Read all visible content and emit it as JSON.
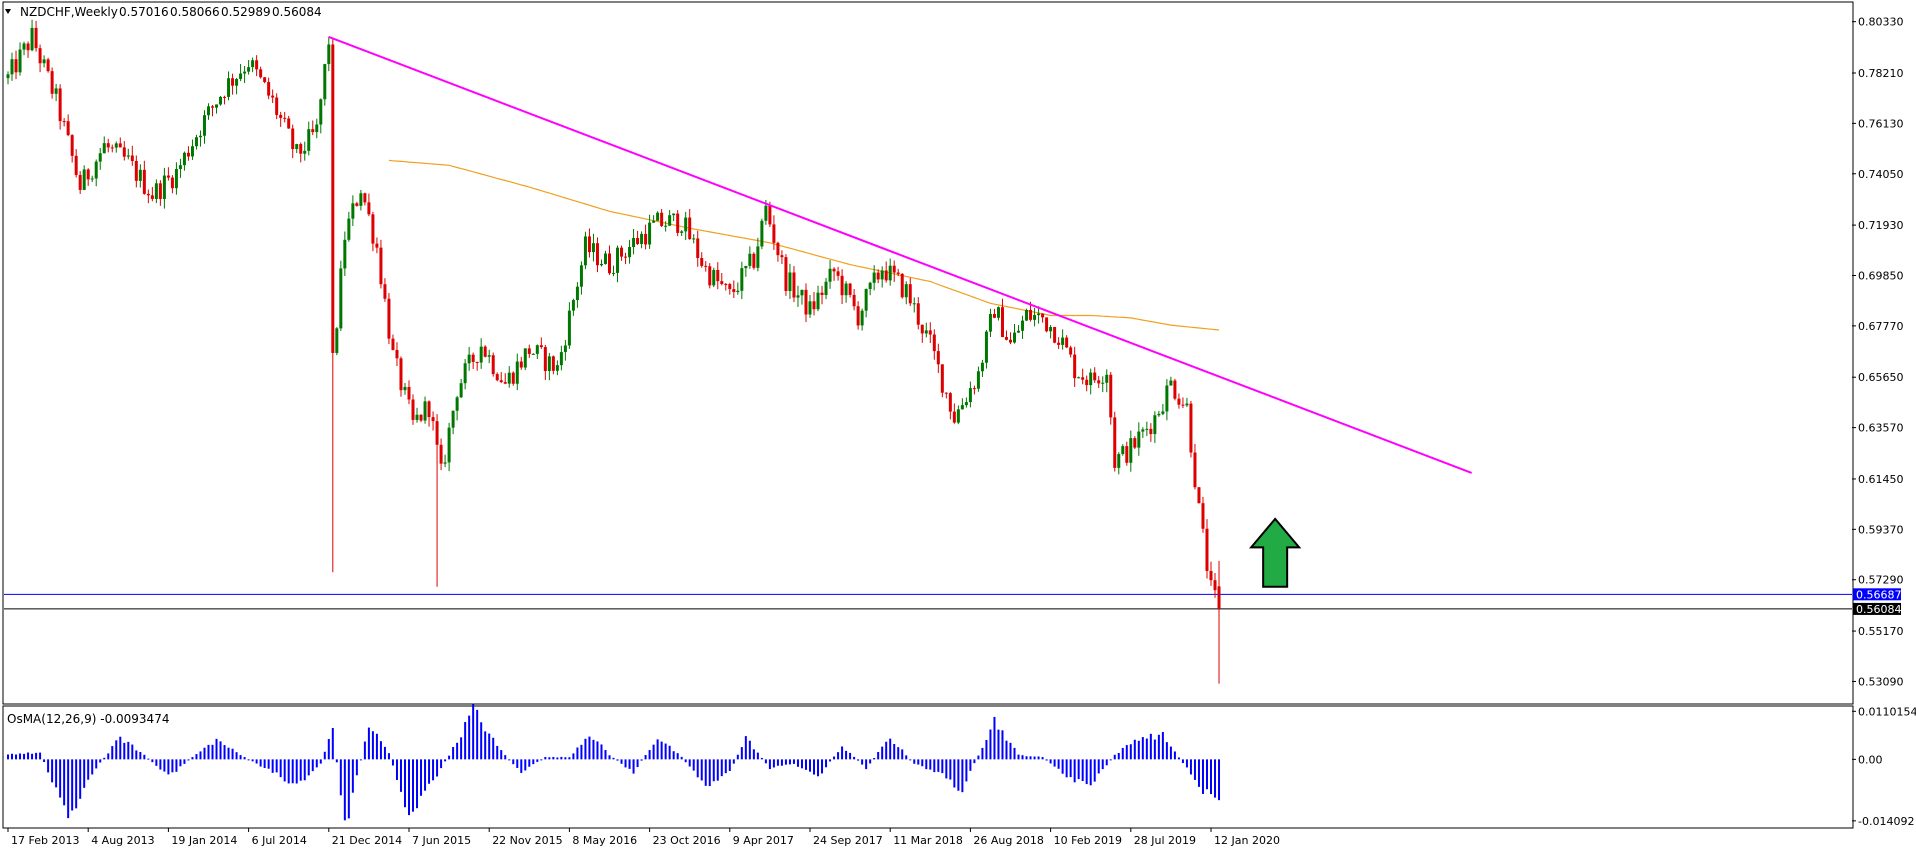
{
  "chart_data": [
    {
      "type": "candlestick",
      "title": "NZDCHF,Weekly",
      "ohlc_header": {
        "open": "0.57016",
        "high": "0.58066",
        "low": "0.52989",
        "close": "0.56084"
      },
      "timeframe": "Weekly",
      "ylim": [
        0.522,
        0.811
      ],
      "y_ticks": [
        "0.80330",
        "0.78210",
        "0.76130",
        "0.74050",
        "0.71930",
        "0.69850",
        "0.67770",
        "0.65650",
        "0.63570",
        "0.61450",
        "0.59370",
        "0.57290",
        "0.55170",
        "0.53090"
      ],
      "x_tick_labels": [
        "17 Feb 2013",
        "4 Aug 2013",
        "19 Jan 2014",
        "6 Jul 2014",
        "21 Dec 2014",
        "7 Jun 2015",
        "22 Nov 2015",
        "8 May 2016",
        "23 Oct 2016",
        "9 Apr 2017",
        "24 Sep 2017",
        "11 Mar 2018",
        "26 Aug 2018",
        "10 Feb 2019",
        "28 Jul 2019",
        "12 Jan 2020"
      ],
      "price_path": [
        {
          "bar": 0,
          "price": 0.78
        },
        {
          "bar": 6,
          "price": 0.797
        },
        {
          "bar": 12,
          "price": 0.771
        },
        {
          "bar": 18,
          "price": 0.735
        },
        {
          "bar": 24,
          "price": 0.752
        },
        {
          "bar": 30,
          "price": 0.745
        },
        {
          "bar": 36,
          "price": 0.732
        },
        {
          "bar": 42,
          "price": 0.741
        },
        {
          "bar": 48,
          "price": 0.76
        },
        {
          "bar": 54,
          "price": 0.776
        },
        {
          "bar": 60,
          "price": 0.787
        },
        {
          "bar": 66,
          "price": 0.77
        },
        {
          "bar": 72,
          "price": 0.748
        },
        {
          "bar": 77,
          "price": 0.758
        },
        {
          "bar": 80,
          "price": 0.796
        },
        {
          "bar": 81,
          "price": 0.662
        },
        {
          "bar": 84,
          "price": 0.715
        },
        {
          "bar": 88,
          "price": 0.735
        },
        {
          "bar": 92,
          "price": 0.71
        },
        {
          "bar": 96,
          "price": 0.665
        },
        {
          "bar": 101,
          "price": 0.637
        },
        {
          "bar": 105,
          "price": 0.645
        },
        {
          "bar": 108,
          "price": 0.616
        },
        {
          "bar": 112,
          "price": 0.652
        },
        {
          "bar": 118,
          "price": 0.67
        },
        {
          "bar": 124,
          "price": 0.654
        },
        {
          "bar": 130,
          "price": 0.668
        },
        {
          "bar": 137,
          "price": 0.66
        },
        {
          "bar": 144,
          "price": 0.71
        },
        {
          "bar": 150,
          "price": 0.703
        },
        {
          "bar": 156,
          "price": 0.712
        },
        {
          "bar": 162,
          "price": 0.72
        },
        {
          "bar": 168,
          "price": 0.721
        },
        {
          "bar": 174,
          "price": 0.701
        },
        {
          "bar": 180,
          "price": 0.69
        },
        {
          "bar": 186,
          "price": 0.705
        },
        {
          "bar": 189,
          "price": 0.726
        },
        {
          "bar": 194,
          "price": 0.697
        },
        {
          "bar": 200,
          "price": 0.684
        },
        {
          "bar": 206,
          "price": 0.7
        },
        {
          "bar": 212,
          "price": 0.682
        },
        {
          "bar": 218,
          "price": 0.702
        },
        {
          "bar": 224,
          "price": 0.692
        },
        {
          "bar": 230,
          "price": 0.67
        },
        {
          "bar": 236,
          "price": 0.64
        },
        {
          "bar": 242,
          "price": 0.658
        },
        {
          "bar": 246,
          "price": 0.685
        },
        {
          "bar": 250,
          "price": 0.67
        },
        {
          "bar": 254,
          "price": 0.682
        },
        {
          "bar": 258,
          "price": 0.681
        },
        {
          "bar": 262,
          "price": 0.674
        },
        {
          "bar": 266,
          "price": 0.66
        },
        {
          "bar": 270,
          "price": 0.655
        },
        {
          "bar": 274,
          "price": 0.66
        },
        {
          "bar": 276,
          "price": 0.622
        },
        {
          "bar": 280,
          "price": 0.627
        },
        {
          "bar": 286,
          "price": 0.64
        },
        {
          "bar": 290,
          "price": 0.654
        },
        {
          "bar": 294,
          "price": 0.644
        },
        {
          "bar": 297,
          "price": 0.601
        },
        {
          "bar": 300,
          "price": 0.568
        },
        {
          "bar": 302,
          "price": 0.561
        }
      ],
      "wick_spikes": [
        {
          "bar": 81,
          "low": 0.576
        },
        {
          "bar": 107,
          "low": 0.57
        },
        {
          "bar": 302,
          "low": 0.53
        }
      ],
      "trendline": {
        "start_bar": 80,
        "start_price": 0.797,
        "end_bar": 365,
        "end_price": 0.617,
        "color": "#ff00ff"
      },
      "moving_average": {
        "color": "#f0a020",
        "points": [
          {
            "bar": 95,
            "price": 0.746
          },
          {
            "bar": 110,
            "price": 0.744
          },
          {
            "bar": 130,
            "price": 0.735
          },
          {
            "bar": 150,
            "price": 0.725
          },
          {
            "bar": 170,
            "price": 0.718
          },
          {
            "bar": 190,
            "price": 0.712
          },
          {
            "bar": 210,
            "price": 0.703
          },
          {
            "bar": 230,
            "price": 0.696
          },
          {
            "bar": 245,
            "price": 0.687
          },
          {
            "bar": 260,
            "price": 0.682
          },
          {
            "bar": 270,
            "price": 0.682
          },
          {
            "bar": 280,
            "price": 0.681
          },
          {
            "bar": 290,
            "price": 0.678
          },
          {
            "bar": 302,
            "price": 0.676
          }
        ]
      },
      "horizontal_lines": [
        {
          "price": 0.56687,
          "label": "0.56687",
          "color": "#0000ff",
          "label_bg": "#0000ff"
        },
        {
          "price": 0.56084,
          "label": "0.56084",
          "color": "#000000",
          "label_bg": "#000000"
        }
      ],
      "arrow": {
        "direction": "up",
        "color": "#22aa44",
        "bar": 316,
        "price_top": 0.598,
        "price_bottom": 0.57
      },
      "colors": {
        "up": "#007700",
        "down": "#dd0000",
        "grid": "none",
        "background": "#ffffff"
      }
    },
    {
      "type": "bar",
      "title": "OsMA(12,26,9) -0.0093474",
      "ylim": [
        -0.0155,
        0.012
      ],
      "y_ticks": [
        "0.0110154",
        "0.00",
        "-0.014092"
      ],
      "color": "#0000ff",
      "profile": [
        {
          "bar": 0,
          "value": 0.0012
        },
        {
          "bar": 8,
          "value": 0.0015
        },
        {
          "bar": 15,
          "value": -0.013
        },
        {
          "bar": 22,
          "value": -0.002
        },
        {
          "bar": 28,
          "value": 0.005
        },
        {
          "bar": 34,
          "value": 0.001
        },
        {
          "bar": 40,
          "value": -0.004
        },
        {
          "bar": 46,
          "value": 0.0005
        },
        {
          "bar": 52,
          "value": 0.0045
        },
        {
          "bar": 58,
          "value": 0.001
        },
        {
          "bar": 64,
          "value": -0.002
        },
        {
          "bar": 72,
          "value": -0.006
        },
        {
          "bar": 78,
          "value": -0.001
        },
        {
          "bar": 81,
          "value": 0.007
        },
        {
          "bar": 84,
          "value": -0.016
        },
        {
          "bar": 90,
          "value": 0.008
        },
        {
          "bar": 95,
          "value": 0.0015
        },
        {
          "bar": 100,
          "value": -0.013
        },
        {
          "bar": 106,
          "value": -0.005
        },
        {
          "bar": 112,
          "value": 0.004
        },
        {
          "bar": 116,
          "value": 0.0115
        },
        {
          "bar": 122,
          "value": 0.003
        },
        {
          "bar": 128,
          "value": -0.003
        },
        {
          "bar": 134,
          "value": 0.0005
        },
        {
          "bar": 140,
          "value": 0.0005
        },
        {
          "bar": 145,
          "value": 0.006
        },
        {
          "bar": 150,
          "value": 0.001
        },
        {
          "bar": 156,
          "value": -0.003
        },
        {
          "bar": 162,
          "value": 0.005
        },
        {
          "bar": 168,
          "value": 0.0005
        },
        {
          "bar": 174,
          "value": -0.006
        },
        {
          "bar": 180,
          "value": -0.003
        },
        {
          "bar": 184,
          "value": 0.005
        },
        {
          "bar": 190,
          "value": -0.002
        },
        {
          "bar": 196,
          "value": -0.001
        },
        {
          "bar": 202,
          "value": -0.004
        },
        {
          "bar": 208,
          "value": 0.003
        },
        {
          "bar": 214,
          "value": -0.002
        },
        {
          "bar": 220,
          "value": 0.005
        },
        {
          "bar": 226,
          "value": -0.001
        },
        {
          "bar": 232,
          "value": -0.003
        },
        {
          "bar": 238,
          "value": -0.007
        },
        {
          "bar": 246,
          "value": 0.009
        },
        {
          "bar": 252,
          "value": 0.001
        },
        {
          "bar": 258,
          "value": 0.0005
        },
        {
          "bar": 264,
          "value": -0.004
        },
        {
          "bar": 270,
          "value": -0.006
        },
        {
          "bar": 276,
          "value": 0.001
        },
        {
          "bar": 282,
          "value": 0.005
        },
        {
          "bar": 288,
          "value": 0.0055
        },
        {
          "bar": 294,
          "value": -0.002
        },
        {
          "bar": 298,
          "value": -0.007
        },
        {
          "bar": 302,
          "value": -0.0093
        }
      ]
    }
  ]
}
